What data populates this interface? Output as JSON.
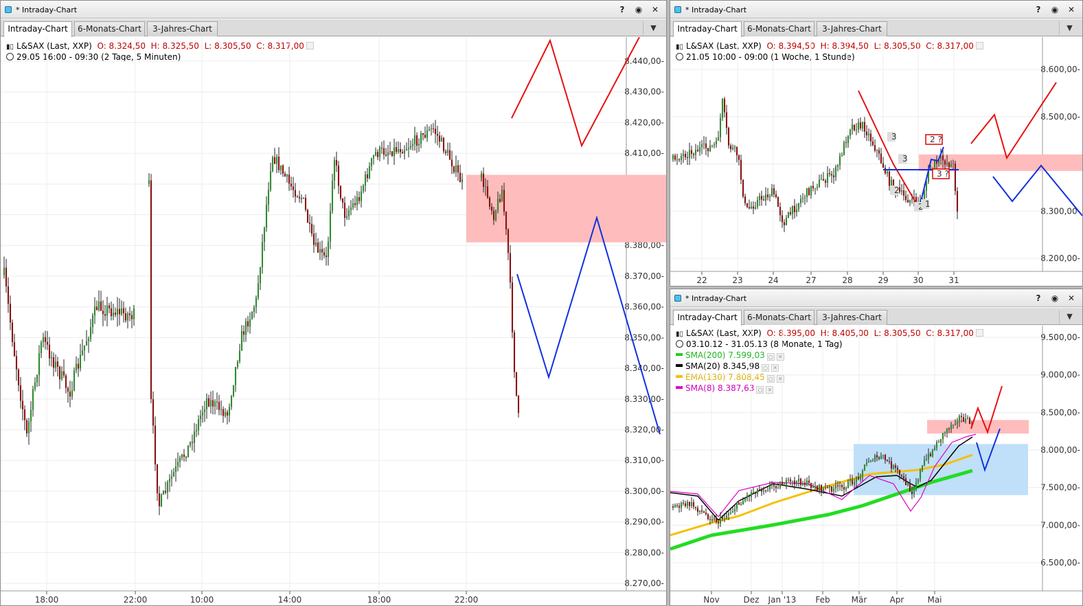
{
  "windows": [
    {
      "title": "* Intraday-Chart",
      "tabs": [
        "Intraday-Chart",
        "6-Monats-Chart",
        "3-Jahres-Chart"
      ],
      "instrument": "L&SAX (Last, XXP)",
      "ohlc": {
        "o": "O: 8.324,50",
        "h": "H: 8.325,50",
        "l": "L: 8.305,50",
        "c": "C: 8.317,00"
      },
      "period": "29.05 16:00 - 09:30 (2 Tage, 5 Minuten)",
      "y_ticks": [
        "8.440,00-",
        "8.430,00-",
        "8.420,00-",
        "8.410,00-",
        "8.400,00-",
        "8.390,00-",
        "8.380,00-",
        "8.370,00-",
        "8.360,00-",
        "8.350,00-",
        "8.340,00-",
        "8.330,00-",
        "8.320,00-",
        "8.310,00-",
        "8.300,00-",
        "8.290,00-",
        "8.280,00-",
        "8.270,00-"
      ],
      "x_ticks": [
        "18:00",
        "22:00",
        "10:00",
        "14:00",
        "18:00",
        "22:00"
      ]
    },
    {
      "title": "* Intraday-Chart",
      "tabs": [
        "Intraday-Chart",
        "6-Monats-Chart",
        "3-Jahres-Chart"
      ],
      "instrument": "L&SAX (Last, XXP)",
      "ohlc": {
        "o": "O: 8.394,50",
        "h": "H: 8.394,50",
        "l": "L: 8.305,50",
        "c": "C: 8.317,00"
      },
      "period": "21.05 10:00 - 09:00 (1 Woche, 1 Stunde)",
      "y_ticks": [
        "8.600,00-",
        "8.500,00-",
        "8.400,00-",
        "8.300,00-",
        "8.200,00-"
      ],
      "x_ticks": [
        "22",
        "23",
        "24",
        "27",
        "28",
        "29",
        "30",
        "31"
      ],
      "wave_labels": [
        "3",
        "3",
        "2",
        "2",
        "1",
        "2 ?",
        "3 ?"
      ]
    },
    {
      "title": "* Intraday-Chart",
      "tabs": [
        "Intraday-Chart",
        "6-Monats-Chart",
        "3-Jahres-Chart"
      ],
      "instrument": "L&SAX (Last, XXP)",
      "ohlc": {
        "o": "O: 8.395,00",
        "h": "H: 8.405,00",
        "l": "L: 8.305,50",
        "c": "C: 8.317,00"
      },
      "period": "03.10.12 - 31.05.13 (8 Monate, 1 Tag)",
      "indicators": [
        {
          "label": "SMA(200)",
          "value": "7.599,03",
          "color": "#22cc22"
        },
        {
          "label": "SMA(20)",
          "value": "8.345,98",
          "color": "#000000"
        },
        {
          "label": "EMA(130)",
          "value": "7.808,45",
          "color": "#f5c000"
        },
        {
          "label": "SMA(8)",
          "value": "8.387,63",
          "color": "#e000c8"
        }
      ],
      "y_ticks": [
        "9.500,00-",
        "9.000,00-",
        "8.500,00-",
        "8.000,00-",
        "7.500,00-",
        "7.000,00-",
        "6.500,00-"
      ],
      "x_ticks": [
        "Nov",
        "Dez",
        "Jan '13",
        "Feb",
        "Mär",
        "Apr",
        "Mai"
      ]
    }
  ],
  "colors": {
    "up": "#2e8b2e",
    "down": "#8b1010",
    "zone_red": "#ffbcbc",
    "zone_blue": "#bfe0f8",
    "path_red": "#e81010",
    "path_blue": "#1030e0"
  }
}
